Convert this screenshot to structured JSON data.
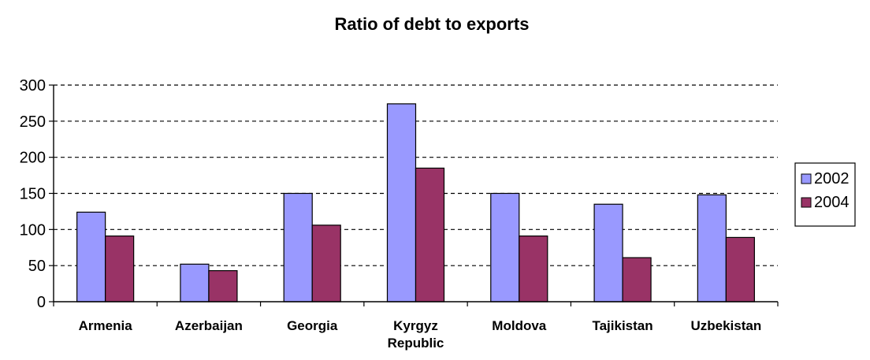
{
  "chart_data": {
    "type": "bar",
    "title": "Ratio of debt to exports",
    "xlabel": "",
    "ylabel": "",
    "categories": [
      "Armenia",
      "Azerbaijan",
      "Georgia",
      "Kyrgyz Republic",
      "Moldova",
      "Tajikistan",
      "Uzbekistan"
    ],
    "series": [
      {
        "name": "2002",
        "color": "#9999ff",
        "values": [
          124,
          52,
          150,
          274,
          150,
          135,
          148
        ]
      },
      {
        "name": "2004",
        "color": "#993366",
        "values": [
          91,
          43,
          106,
          185,
          91,
          61,
          89
        ]
      }
    ],
    "ylim": [
      0,
      300
    ],
    "yticks": [
      0,
      50,
      100,
      150,
      200,
      250,
      300
    ],
    "grid": "horizontal dashed",
    "legend_position": "right"
  }
}
